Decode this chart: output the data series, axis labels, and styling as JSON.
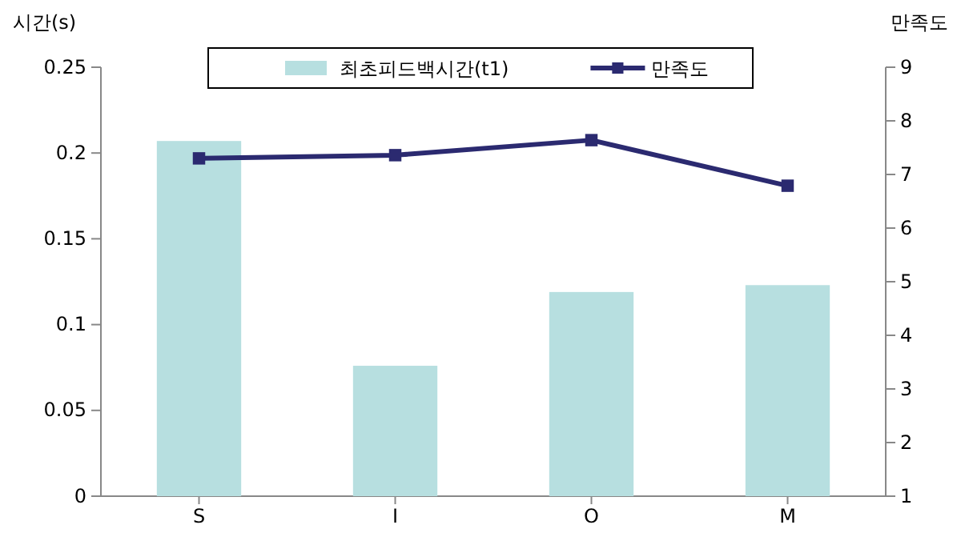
{
  "chart_data": {
    "type": "bar",
    "ylabel": "시간(s)",
    "y2label": "만족도",
    "categories": [
      "S",
      "I",
      "O",
      "M"
    ],
    "series": [
      {
        "name": "최초피드백시간(t1)",
        "color": "#b7dfe0",
        "values": [
          0.207,
          0.076,
          0.119,
          0.123
        ]
      },
      {
        "name": "만족도",
        "type": "line",
        "axis": "y2",
        "color": "#2b2a70",
        "marker": "square",
        "values": [
          7.3,
          7.36,
          7.64,
          6.79
        ]
      }
    ],
    "ylim": [
      0,
      0.25
    ],
    "yticks": [
      0,
      0.05,
      0.1,
      0.15,
      0.2,
      0.25
    ],
    "y2lim": [
      1,
      9
    ],
    "y2ticks": [
      1,
      2,
      3,
      4,
      5,
      6,
      7,
      8,
      9
    ],
    "grid": false,
    "legend": "top"
  }
}
